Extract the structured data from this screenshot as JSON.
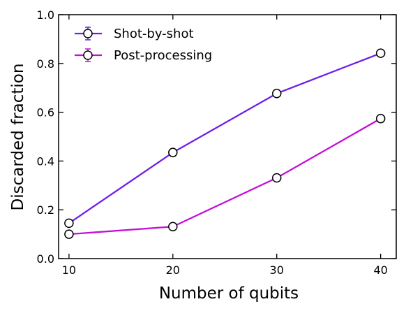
{
  "chart_data": {
    "type": "line",
    "title": "",
    "xlabel": "Number of qubits",
    "ylabel": "Discarded fraction",
    "x": [
      10,
      20,
      30,
      40
    ],
    "xticks": [
      "10",
      "20",
      "30",
      "40"
    ],
    "yticks": [
      "0.0",
      "0.2",
      "0.4",
      "0.6",
      "0.8",
      "1.0"
    ],
    "xlim": [
      9,
      41.5
    ],
    "ylim": [
      0,
      1.0
    ],
    "grid": false,
    "legend_position": "top-left",
    "series": [
      {
        "name": "Shot-by-shot",
        "color": "#6f1ee8",
        "values": [
          0.145,
          0.435,
          0.677,
          0.842
        ]
      },
      {
        "name": "Post-processing",
        "color": "#c40fd6",
        "values": [
          0.1,
          0.131,
          0.331,
          0.574
        ]
      }
    ]
  }
}
